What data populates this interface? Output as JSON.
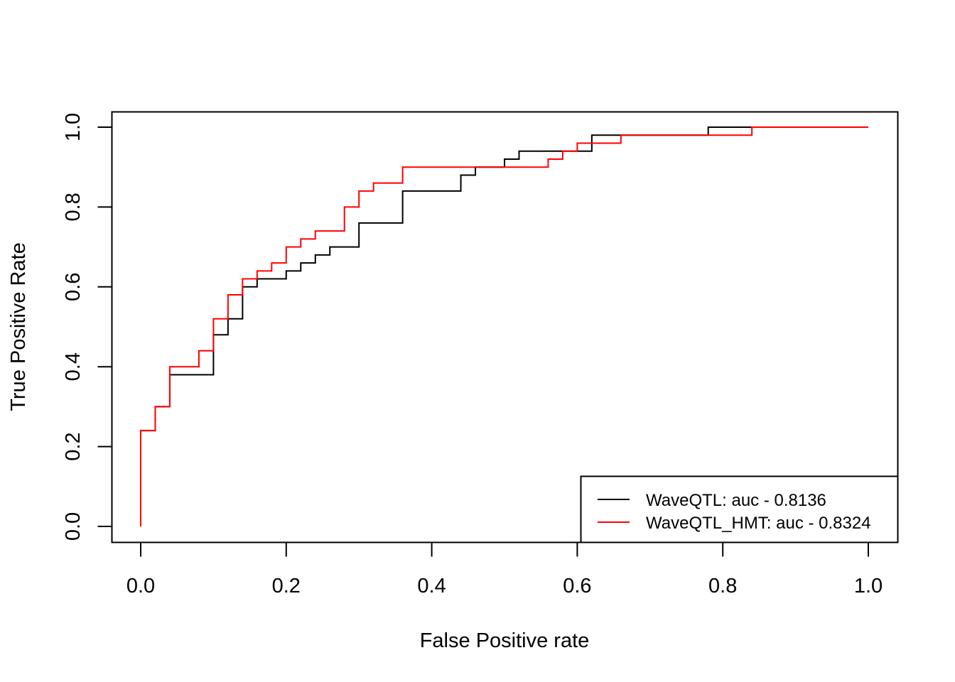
{
  "chart_data": {
    "type": "line",
    "title": "",
    "xlabel": "False Positive rate",
    "ylabel": "True Positive Rate",
    "xlim": [
      0,
      1
    ],
    "ylim": [
      0,
      1
    ],
    "x_ticks": [
      0.0,
      0.2,
      0.4,
      0.6,
      0.8,
      1.0
    ],
    "y_ticks": [
      0.0,
      0.2,
      0.4,
      0.6,
      0.8,
      1.0
    ],
    "x_tick_labels": [
      "0.0",
      "0.2",
      "0.4",
      "0.6",
      "0.8",
      "1.0"
    ],
    "y_tick_labels": [
      "0.0",
      "0.2",
      "0.4",
      "0.6",
      "0.8",
      "1.0"
    ],
    "grid": false,
    "legend_position": "bottom-right",
    "series": [
      {
        "name": "WaveQTL: auc - 0.8136",
        "color": "#000000",
        "x": [
          0.0,
          0.0,
          0.02,
          0.02,
          0.04,
          0.04,
          0.1,
          0.1,
          0.12,
          0.12,
          0.14,
          0.14,
          0.16,
          0.16,
          0.2,
          0.2,
          0.22,
          0.22,
          0.24,
          0.24,
          0.26,
          0.26,
          0.3,
          0.3,
          0.36,
          0.36,
          0.44,
          0.44,
          0.46,
          0.46,
          0.5,
          0.5,
          0.52,
          0.52,
          0.6,
          0.6,
          0.62,
          0.62,
          0.78,
          0.78,
          1.0
        ],
        "y": [
          0.0,
          0.24,
          0.24,
          0.3,
          0.3,
          0.38,
          0.38,
          0.48,
          0.48,
          0.52,
          0.52,
          0.6,
          0.6,
          0.62,
          0.62,
          0.64,
          0.64,
          0.66,
          0.66,
          0.68,
          0.68,
          0.7,
          0.7,
          0.76,
          0.76,
          0.84,
          0.84,
          0.88,
          0.88,
          0.9,
          0.9,
          0.92,
          0.92,
          0.94,
          0.94,
          0.94,
          0.94,
          0.98,
          0.98,
          1.0,
          1.0
        ]
      },
      {
        "name": "WaveQTL_HMT: auc - 0.8324",
        "color": "#ff0000",
        "x": [
          0.0,
          0.0,
          0.02,
          0.02,
          0.04,
          0.04,
          0.08,
          0.08,
          0.1,
          0.1,
          0.12,
          0.12,
          0.14,
          0.14,
          0.16,
          0.16,
          0.18,
          0.18,
          0.2,
          0.2,
          0.22,
          0.22,
          0.24,
          0.24,
          0.28,
          0.28,
          0.3,
          0.3,
          0.32,
          0.32,
          0.36,
          0.36,
          0.56,
          0.56,
          0.58,
          0.58,
          0.6,
          0.6,
          0.66,
          0.66,
          0.84,
          0.84,
          1.0
        ],
        "y": [
          0.0,
          0.24,
          0.24,
          0.3,
          0.3,
          0.4,
          0.4,
          0.44,
          0.44,
          0.52,
          0.52,
          0.58,
          0.58,
          0.62,
          0.62,
          0.64,
          0.64,
          0.66,
          0.66,
          0.7,
          0.7,
          0.72,
          0.72,
          0.74,
          0.74,
          0.8,
          0.8,
          0.84,
          0.84,
          0.86,
          0.86,
          0.9,
          0.9,
          0.92,
          0.92,
          0.94,
          0.94,
          0.96,
          0.96,
          0.98,
          0.98,
          1.0,
          1.0
        ]
      }
    ]
  }
}
